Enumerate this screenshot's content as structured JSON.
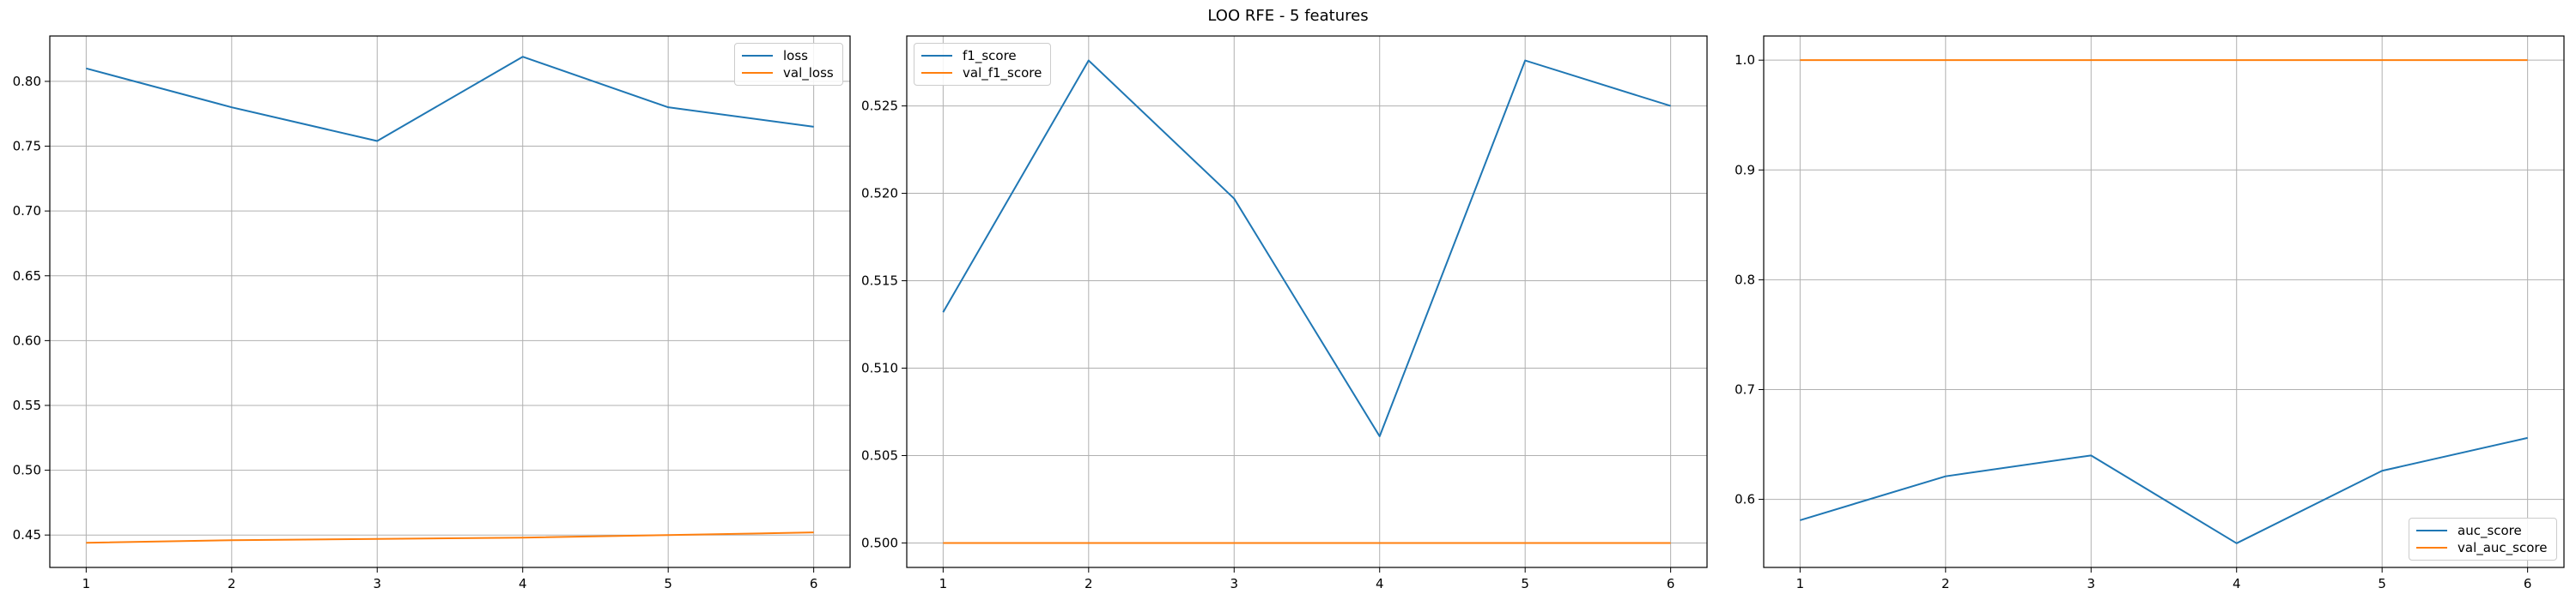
{
  "figure": {
    "title": "LOO RFE - 5 features"
  },
  "chart_data": [
    {
      "type": "line",
      "x": [
        1,
        2,
        3,
        4,
        5,
        6
      ],
      "xlim": [
        0.75,
        6.25
      ],
      "ylim": [
        0.425,
        0.835
      ],
      "xticks": [
        "1",
        "2",
        "3",
        "4",
        "5",
        "6"
      ],
      "yticks": [
        "0.45",
        "0.50",
        "0.55",
        "0.60",
        "0.65",
        "0.70",
        "0.75",
        "0.80"
      ],
      "grid": true,
      "legend_loc": "upper-right",
      "series": [
        {
          "name": "loss",
          "color": "#1f77b4",
          "values": [
            0.81,
            0.78,
            0.754,
            0.819,
            0.78,
            0.765
          ]
        },
        {
          "name": "val_loss",
          "color": "#ff7f0e",
          "values": [
            0.444,
            0.446,
            0.447,
            0.448,
            0.45,
            0.452
          ]
        }
      ]
    },
    {
      "type": "line",
      "x": [
        1,
        2,
        3,
        4,
        5,
        6
      ],
      "xlim": [
        0.75,
        6.25
      ],
      "ylim": [
        0.4986,
        0.529
      ],
      "xticks": [
        "1",
        "2",
        "3",
        "4",
        "5",
        "6"
      ],
      "yticks": [
        "0.500",
        "0.505",
        "0.510",
        "0.515",
        "0.520",
        "0.525"
      ],
      "grid": true,
      "legend_loc": "upper-left",
      "series": [
        {
          "name": "f1_score",
          "color": "#1f77b4",
          "values": [
            0.5132,
            0.5276,
            0.5197,
            0.5061,
            0.5276,
            0.525
          ]
        },
        {
          "name": "val_f1_score",
          "color": "#ff7f0e",
          "values": [
            0.5,
            0.5,
            0.5,
            0.5,
            0.5,
            0.5
          ]
        }
      ]
    },
    {
      "type": "line",
      "x": [
        1,
        2,
        3,
        4,
        5,
        6
      ],
      "xlim": [
        0.75,
        6.25
      ],
      "ylim": [
        0.538,
        1.022
      ],
      "xticks": [
        "1",
        "2",
        "3",
        "4",
        "5",
        "6"
      ],
      "yticks": [
        "0.6",
        "0.7",
        "0.8",
        "0.9",
        "1.0"
      ],
      "grid": true,
      "legend_loc": "lower-right",
      "series": [
        {
          "name": "auc_score",
          "color": "#1f77b4",
          "values": [
            0.581,
            0.621,
            0.64,
            0.56,
            0.626,
            0.656
          ]
        },
        {
          "name": "val_auc_score",
          "color": "#ff7f0e",
          "values": [
            1.0,
            1.0,
            1.0,
            1.0,
            1.0,
            1.0
          ]
        }
      ]
    }
  ]
}
